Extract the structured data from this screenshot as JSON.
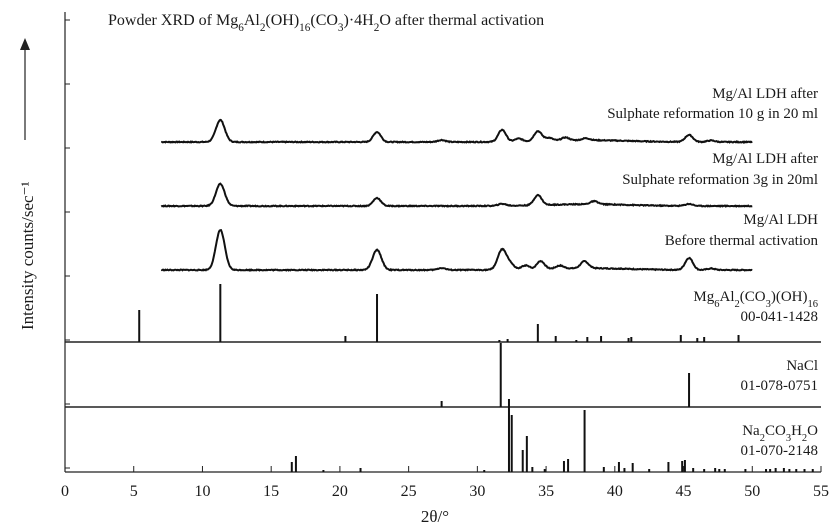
{
  "chart_data": {
    "type": "line",
    "title": {
      "prefix": "Powder XRD of Mg",
      "tail": " after thermal activation",
      "formula": [
        [
          "Mg",
          ""
        ],
        [
          "6",
          "sub"
        ],
        [
          "Al",
          ""
        ],
        [
          "2",
          "sub"
        ],
        [
          "(OH)",
          ""
        ],
        [
          "16",
          "sub"
        ],
        [
          "(CO",
          ""
        ],
        [
          "3",
          "sub"
        ],
        [
          ")·4H",
          ""
        ],
        [
          "2",
          "sub"
        ],
        [
          "O",
          ""
        ]
      ]
    },
    "xlabel": "2θ/°",
    "ylabel": "Intensity counts/sec⁻¹",
    "xlim": [
      0,
      55
    ],
    "x_ticks": [
      0,
      5,
      10,
      15,
      20,
      25,
      30,
      35,
      40,
      45,
      50,
      55
    ],
    "grid": false,
    "measured_series": [
      {
        "label_lines": [
          "Mg/Al LDH after",
          "Sulphate reformation 10 g in 20 ml"
        ],
        "x_start": 7,
        "x_end": 50,
        "peaks": [
          [
            11.3,
            22
          ],
          [
            22.7,
            10
          ],
          [
            27.4,
            2
          ],
          [
            31.8,
            12
          ],
          [
            33.0,
            3
          ],
          [
            34.4,
            10
          ],
          [
            35.2,
            3
          ],
          [
            36.4,
            3
          ],
          [
            37.9,
            2
          ],
          [
            45.4,
            7
          ],
          [
            47.0,
            1.5
          ]
        ]
      },
      {
        "label_lines": [
          "Mg/Al LDH after",
          "Sulphate reformation 3g in 20ml"
        ],
        "x_start": 7,
        "x_end": 50,
        "peaks": [
          [
            11.3,
            22
          ],
          [
            22.7,
            8
          ],
          [
            31.8,
            2
          ],
          [
            34.4,
            10
          ],
          [
            38.5,
            3
          ],
          [
            45.4,
            2
          ]
        ]
      },
      {
        "label_lines": [
          "Mg/Al LDH",
          "Before thermal activation"
        ],
        "x_start": 7,
        "x_end": 50,
        "peaks": [
          [
            11.3,
            40
          ],
          [
            22.7,
            20
          ],
          [
            27.4,
            2
          ],
          [
            31.8,
            20
          ],
          [
            32.4,
            5
          ],
          [
            33.5,
            4
          ],
          [
            34.6,
            8
          ],
          [
            36.0,
            3
          ],
          [
            37.8,
            7
          ],
          [
            45.4,
            12
          ],
          [
            47.0,
            1.5
          ]
        ]
      }
    ],
    "reference_panels": [
      {
        "label_formula": [
          [
            "Mg",
            ""
          ],
          [
            "6",
            "sub"
          ],
          [
            "Al",
            ""
          ],
          [
            "2",
            "sub"
          ],
          [
            "(CO",
            ""
          ],
          [
            "3",
            "sub"
          ],
          [
            ")(OH)",
            ""
          ],
          [
            "16",
            "sub"
          ]
        ],
        "label_code": "00-041-1428",
        "sticks": [
          [
            5.4,
            32
          ],
          [
            11.3,
            58
          ],
          [
            20.4,
            6
          ],
          [
            22.7,
            48
          ],
          [
            31.6,
            2
          ],
          [
            32.2,
            3
          ],
          [
            34.4,
            18
          ],
          [
            35.7,
            6
          ],
          [
            37.2,
            2
          ],
          [
            38.0,
            5
          ],
          [
            39.0,
            6
          ],
          [
            41.0,
            4
          ],
          [
            41.2,
            5
          ],
          [
            44.8,
            7
          ],
          [
            46.0,
            4
          ],
          [
            46.5,
            5
          ],
          [
            49.0,
            7
          ]
        ]
      },
      {
        "label_formula": [
          [
            "NaCl",
            ""
          ]
        ],
        "label_code": "01-078-0751",
        "sticks": [
          [
            27.4,
            6
          ],
          [
            31.7,
            64
          ],
          [
            45.4,
            34
          ]
        ]
      },
      {
        "label_formula": [
          [
            "Na",
            ""
          ],
          [
            "2",
            "sub"
          ],
          [
            "CO",
            ""
          ],
          [
            "3",
            "sub"
          ],
          [
            "H",
            ""
          ],
          [
            "2",
            "sub"
          ],
          [
            "O",
            ""
          ]
        ],
        "label_code": "01-070-2148",
        "sticks": [
          [
            16.5,
            10
          ],
          [
            16.8,
            16
          ],
          [
            18.8,
            2
          ],
          [
            21.5,
            4
          ],
          [
            30.5,
            2
          ],
          [
            32.3,
            73
          ],
          [
            32.5,
            57
          ],
          [
            33.3,
            22
          ],
          [
            33.6,
            36
          ],
          [
            34.0,
            5
          ],
          [
            34.9,
            3
          ],
          [
            36.3,
            11
          ],
          [
            36.6,
            13
          ],
          [
            37.8,
            62
          ],
          [
            39.2,
            5
          ],
          [
            40.3,
            10
          ],
          [
            40.7,
            4
          ],
          [
            41.3,
            9
          ],
          [
            42.5,
            3
          ],
          [
            43.9,
            10
          ],
          [
            44.9,
            11
          ],
          [
            45.1,
            12
          ],
          [
            45.7,
            4
          ],
          [
            46.5,
            3
          ],
          [
            47.3,
            4
          ],
          [
            47.6,
            3
          ],
          [
            48.0,
            3
          ],
          [
            49.5,
            3
          ],
          [
            51.0,
            3
          ],
          [
            51.3,
            3
          ],
          [
            51.7,
            4
          ],
          [
            52.3,
            4
          ],
          [
            52.7,
            3
          ],
          [
            53.2,
            3
          ],
          [
            53.8,
            3
          ],
          [
            54.4,
            3
          ]
        ]
      }
    ]
  }
}
